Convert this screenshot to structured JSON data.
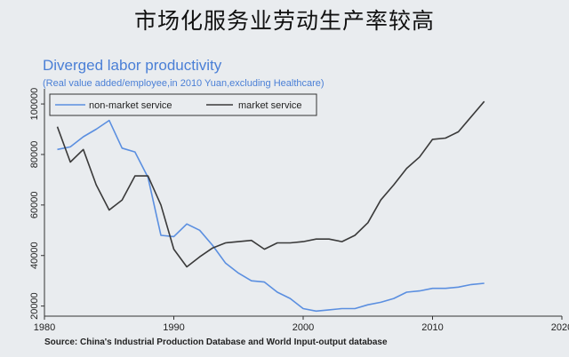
{
  "slide_title": "市场化服务业劳动生产率较高",
  "source": "Source: China's Industrial Production Database and World Input-output database",
  "chart_data": {
    "type": "line",
    "title": "Diverged labor productivity",
    "subtitle": "(Real value added/employee,in 2010 Yuan,excluding Healthcare)",
    "xlabel": "",
    "ylabel": "",
    "xlim": [
      1980,
      2020
    ],
    "ylim": [
      16000,
      106000
    ],
    "xticks": [
      1980,
      1990,
      2000,
      2010,
      2020
    ],
    "yticks": [
      20000,
      40000,
      60000,
      80000,
      100000
    ],
    "grid": false,
    "legend_position": "top-left",
    "series": [
      {
        "name": "non-market service",
        "color": "#5b8fe0",
        "x": [
          1981,
          1982,
          1983,
          1984,
          1985,
          1986,
          1987,
          1988,
          1989,
          1990,
          1991,
          1992,
          1993,
          1994,
          1995,
          1996,
          1997,
          1998,
          1999,
          2000,
          2001,
          2002,
          2003,
          2004,
          2005,
          2006,
          2007,
          2008,
          2009,
          2010,
          2011,
          2012,
          2013,
          2014
        ],
        "y": [
          82000,
          83000,
          87000,
          90000,
          93500,
          82500,
          81000,
          71000,
          48000,
          47500,
          52500,
          50000,
          44000,
          37000,
          33000,
          30000,
          29500,
          25500,
          23000,
          19000,
          18000,
          18500,
          19000,
          19000,
          20500,
          21500,
          23000,
          25500,
          26000,
          27000,
          27000,
          27500,
          28500,
          29000
        ]
      },
      {
        "name": "market service",
        "color": "#3a3a3a",
        "x": [
          1981,
          1982,
          1983,
          1984,
          1985,
          1986,
          1987,
          1988,
          1989,
          1990,
          1991,
          1992,
          1993,
          1994,
          1995,
          1996,
          1997,
          1998,
          1999,
          2000,
          2001,
          2002,
          2003,
          2004,
          2005,
          2006,
          2007,
          2008,
          2009,
          2010,
          2011,
          2012,
          2013,
          2014
        ],
        "y": [
          91000,
          77000,
          82000,
          68000,
          58000,
          62000,
          71500,
          71500,
          60000,
          42500,
          35500,
          39500,
          43000,
          45000,
          45500,
          46000,
          42500,
          45000,
          45000,
          45500,
          46500,
          46500,
          45500,
          48000,
          53000,
          62000,
          68000,
          74500,
          79000,
          86000,
          86500,
          89000,
          95000,
          101000
        ]
      }
    ]
  }
}
